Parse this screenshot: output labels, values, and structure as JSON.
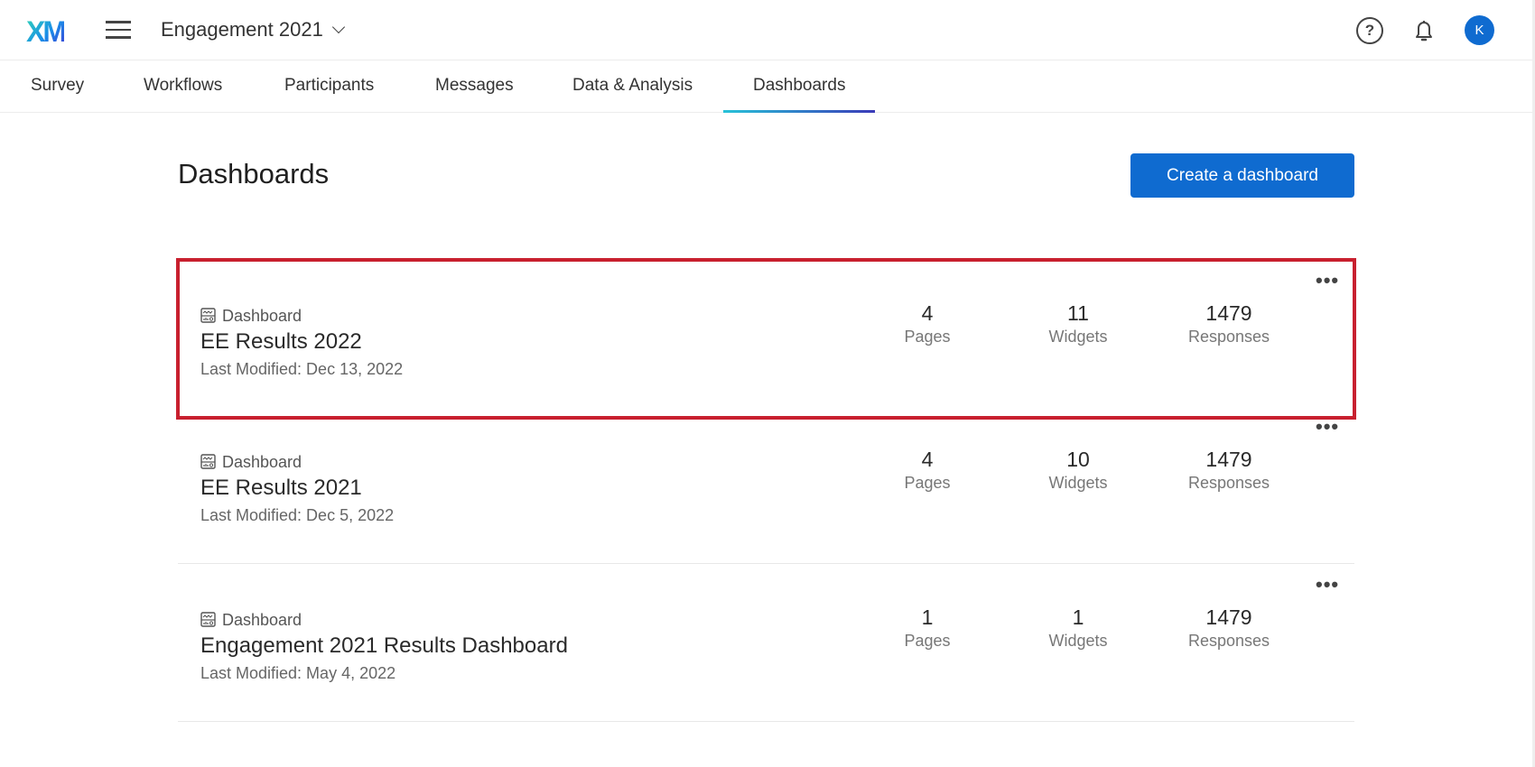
{
  "header": {
    "logo": "XM",
    "project": "Engagement 2021",
    "avatar_initial": "K"
  },
  "tabs": [
    {
      "label": "Survey"
    },
    {
      "label": "Workflows"
    },
    {
      "label": "Participants"
    },
    {
      "label": "Messages"
    },
    {
      "label": "Data & Analysis"
    },
    {
      "label": "Dashboards",
      "active": true
    }
  ],
  "page": {
    "title": "Dashboards",
    "create_label": "Create a dashboard"
  },
  "accent": "#0f6bd0",
  "selection_color": "#c8202f",
  "dashboards": [
    {
      "type": "Dashboard",
      "name": "EE Results 2022",
      "modified": "Last Modified: Dec 13, 2022",
      "pages": "4",
      "widgets": "11",
      "responses": "1479",
      "selected": true
    },
    {
      "type": "Dashboard",
      "name": "EE Results 2021",
      "modified": "Last Modified: Dec 5, 2022",
      "pages": "4",
      "widgets": "10",
      "responses": "1479"
    },
    {
      "type": "Dashboard",
      "name": "Engagement 2021 Results Dashboard",
      "modified": "Last Modified: May 4, 2022",
      "pages": "1",
      "widgets": "1",
      "responses": "1479"
    }
  ],
  "labels": {
    "pages": "Pages",
    "widgets": "Widgets",
    "responses": "Responses"
  }
}
